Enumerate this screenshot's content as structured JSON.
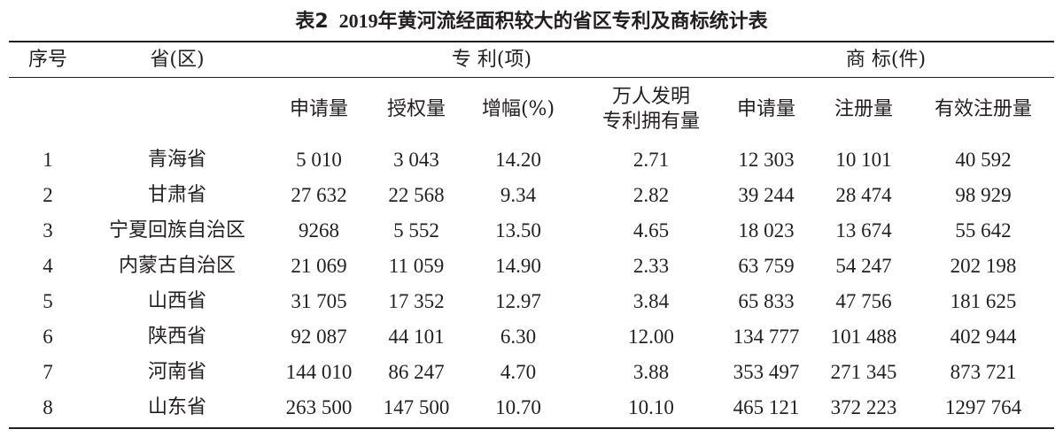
{
  "title": {
    "label": "表2",
    "text": "2019年黄河流经面积较大的省区专利及商标统计表"
  },
  "header": {
    "seq": "序号",
    "province": "省(区)",
    "patent_group": "专 利(项)",
    "trademark_group": "商 标(件)",
    "patent_cols": [
      "申请量",
      "授权量",
      "增幅(%)",
      "万人发明",
      "专利拥有量"
    ],
    "trademark_cols": [
      "申请量",
      "注册量",
      "有效注册量"
    ]
  },
  "rows": [
    [
      "1",
      "青海省",
      "5 010",
      "3 043",
      "14.20",
      "2.71",
      "12 303",
      "10 101",
      "40 592"
    ],
    [
      "2",
      "甘肃省",
      "27 632",
      "22 568",
      "9.34",
      "2.82",
      "39 244",
      "28 474",
      "98 929"
    ],
    [
      "3",
      "宁夏回族自治区",
      "9268",
      "5 552",
      "13.50",
      "4.65",
      "18 023",
      "13 674",
      "55 642"
    ],
    [
      "4",
      "内蒙古自治区",
      "21 069",
      "11 059",
      "14.90",
      "2.33",
      "63 759",
      "54 247",
      "202 198"
    ],
    [
      "5",
      "山西省",
      "31 705",
      "17 352",
      "12.97",
      "3.84",
      "65 833",
      "47 756",
      "181 625"
    ],
    [
      "6",
      "陕西省",
      "92 087",
      "44 101",
      "6.30",
      "12.00",
      "134 777",
      "101 488",
      "402 944"
    ],
    [
      "7",
      "河南省",
      "144 010",
      "86 247",
      "4.70",
      "3.88",
      "353 497",
      "271 345",
      "873 721"
    ],
    [
      "8",
      "山东省",
      "263 500",
      "147 500",
      "10.70",
      "10.10",
      "465 121",
      "372 223",
      "1297 764"
    ]
  ]
}
